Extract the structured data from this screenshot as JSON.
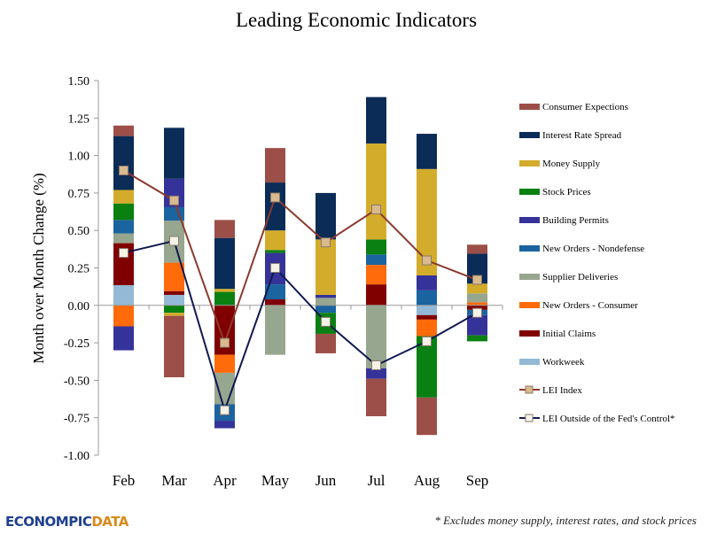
{
  "chart_data": {
    "type": "bar",
    "stacked": true,
    "title": "Leading Economic Indicators",
    "xlabel": "",
    "ylabel": "Month over Month Change (%)",
    "ylim": [
      -1.0,
      1.5
    ],
    "yticks": [
      "1.50",
      "1.25",
      "1.00",
      "0.75",
      "0.50",
      "0.25",
      "0.00",
      "-0.25",
      "-0.50",
      "-0.75",
      "-1.00"
    ],
    "categories": [
      "Feb",
      "Mar",
      "Apr",
      "May",
      "Jun",
      "Jul",
      "Aug",
      "Sep"
    ],
    "grid": false,
    "legend_position": "right",
    "series": [
      {
        "name": "Workweek",
        "color": "#93B9D6",
        "values": [
          0.135,
          0.07,
          0,
          0,
          0,
          0,
          -0.065,
          0
        ]
      },
      {
        "name": "Initial Claims",
        "color": "#800000",
        "values": [
          0.28,
          0.025,
          -0.33,
          0.04,
          0,
          0.14,
          -0.03,
          -0.03
        ]
      },
      {
        "name": "New Orders - Consumer",
        "color": "#FF6A0A",
        "values": [
          -0.14,
          0.19,
          -0.12,
          0,
          0,
          0.13,
          -0.11,
          0.02
        ]
      },
      {
        "name": "Supplier Deliveries",
        "color": "#97A68E",
        "values": [
          0.065,
          0.28,
          -0.21,
          -0.33,
          0.05,
          -0.42,
          0,
          0.06
        ]
      },
      {
        "name": "New Orders - Nondefense",
        "color": "#1A64A0",
        "values": [
          0.09,
          0.09,
          -0.11,
          0.1,
          -0.05,
          0.07,
          0.1,
          -0.035
        ]
      },
      {
        "name": "Building Permits",
        "color": "#35339A",
        "values": [
          -0.16,
          0.19,
          -0.05,
          0.21,
          0.02,
          -0.07,
          0.1,
          -0.135
        ]
      },
      {
        "name": "Stock Prices",
        "color": "#0A8012",
        "values": [
          0.11,
          -0.05,
          0.09,
          0.02,
          -0.14,
          0.1,
          -0.41,
          -0.04
        ]
      },
      {
        "name": "Money Supply",
        "color": "#D4AC2B",
        "values": [
          0.09,
          -0.02,
          0.02,
          0.13,
          0.37,
          0.64,
          0.71,
          0.065
        ]
      },
      {
        "name": "Interest Rate Spread",
        "color": "#0B2C56",
        "values": [
          0.36,
          0.34,
          0.34,
          0.32,
          0.31,
          0.31,
          0.235,
          0.2
        ]
      },
      {
        "name": "Consumer Expections",
        "color": "#9C4F48",
        "values": [
          0.07,
          -0.41,
          0.12,
          0.23,
          -0.13,
          -0.25,
          -0.25,
          0.06
        ]
      }
    ],
    "lines": [
      {
        "name": "LEI Index",
        "color": "#8B3A2E",
        "marker_color": "#D9B98E",
        "values": [
          0.9,
          0.7,
          -0.25,
          0.72,
          0.42,
          0.64,
          0.3,
          0.17
        ]
      },
      {
        "name": "LEI Outside of the Fed's Control*",
        "color": "#101850",
        "marker_color": "#F5F3E8",
        "values": [
          0.35,
          0.43,
          -0.7,
          0.25,
          -0.11,
          -0.4,
          -0.24,
          -0.05
        ]
      }
    ]
  },
  "footnote": "* Excludes money supply, interest rates, and stock prices",
  "logo": {
    "part1": "ECONOMIC",
    "part2": "DATA",
    "text": "ECONOMPICDATA"
  }
}
